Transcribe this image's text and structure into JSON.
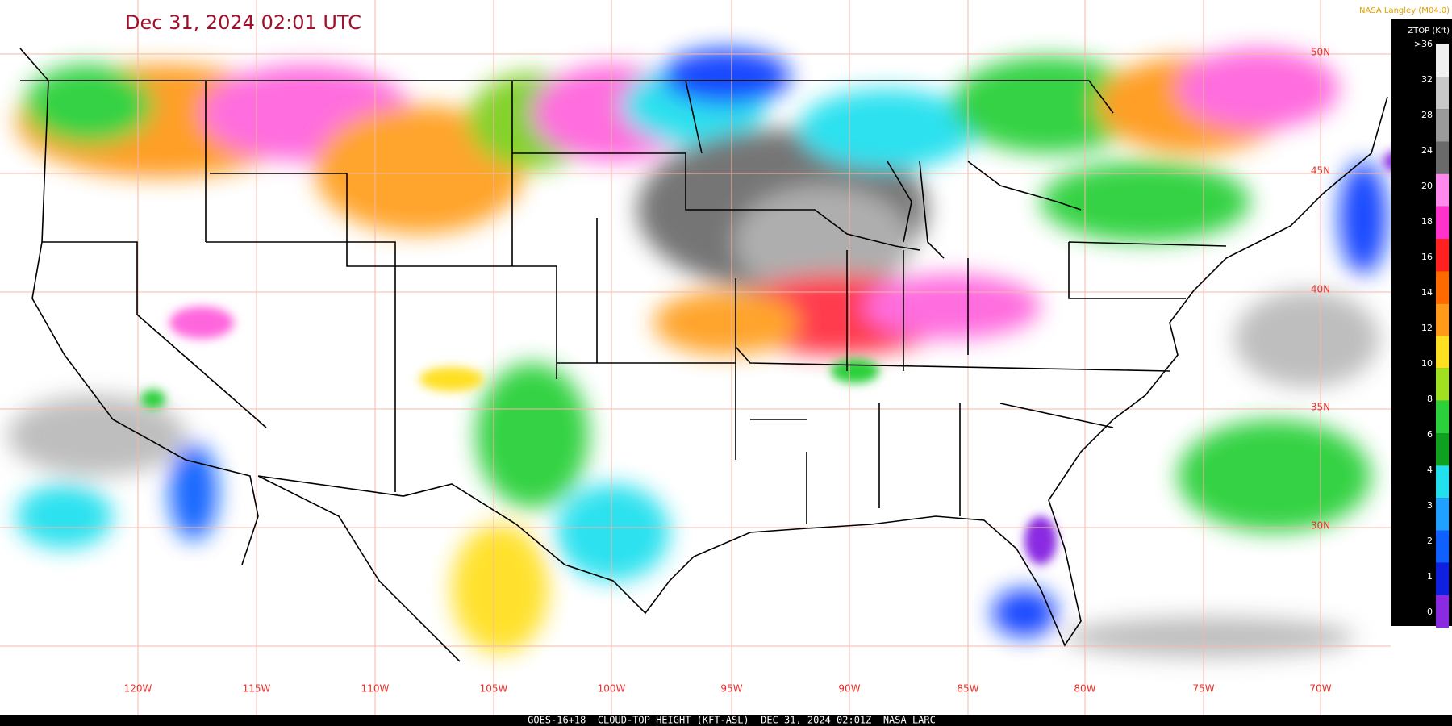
{
  "header": {
    "title": "Dec 31, 2024 02:01 UTC",
    "source": "NASA Langley (M04.0)"
  },
  "map": {
    "longitude_labels": [
      "120W",
      "115W",
      "110W",
      "105W",
      "100W",
      "95W",
      "90W",
      "85W",
      "80W",
      "75W",
      "70W"
    ],
    "latitude_labels": [
      "50N",
      "45N",
      "40N",
      "35N",
      "30N"
    ]
  },
  "legend": {
    "title": "ZTOP (Kft)",
    "labels": [
      ">36",
      "32",
      "28",
      "24",
      "20",
      "18",
      "16",
      "14",
      "12",
      "10",
      "8",
      "6",
      "4",
      "3",
      "2",
      "1",
      "0"
    ]
  },
  "footer": {
    "caption": "GOES-16+18  CLOUD-TOP HEIGHT (KFT-ASL)  DEC 31, 2024 02:01Z  NASA LARC"
  }
}
